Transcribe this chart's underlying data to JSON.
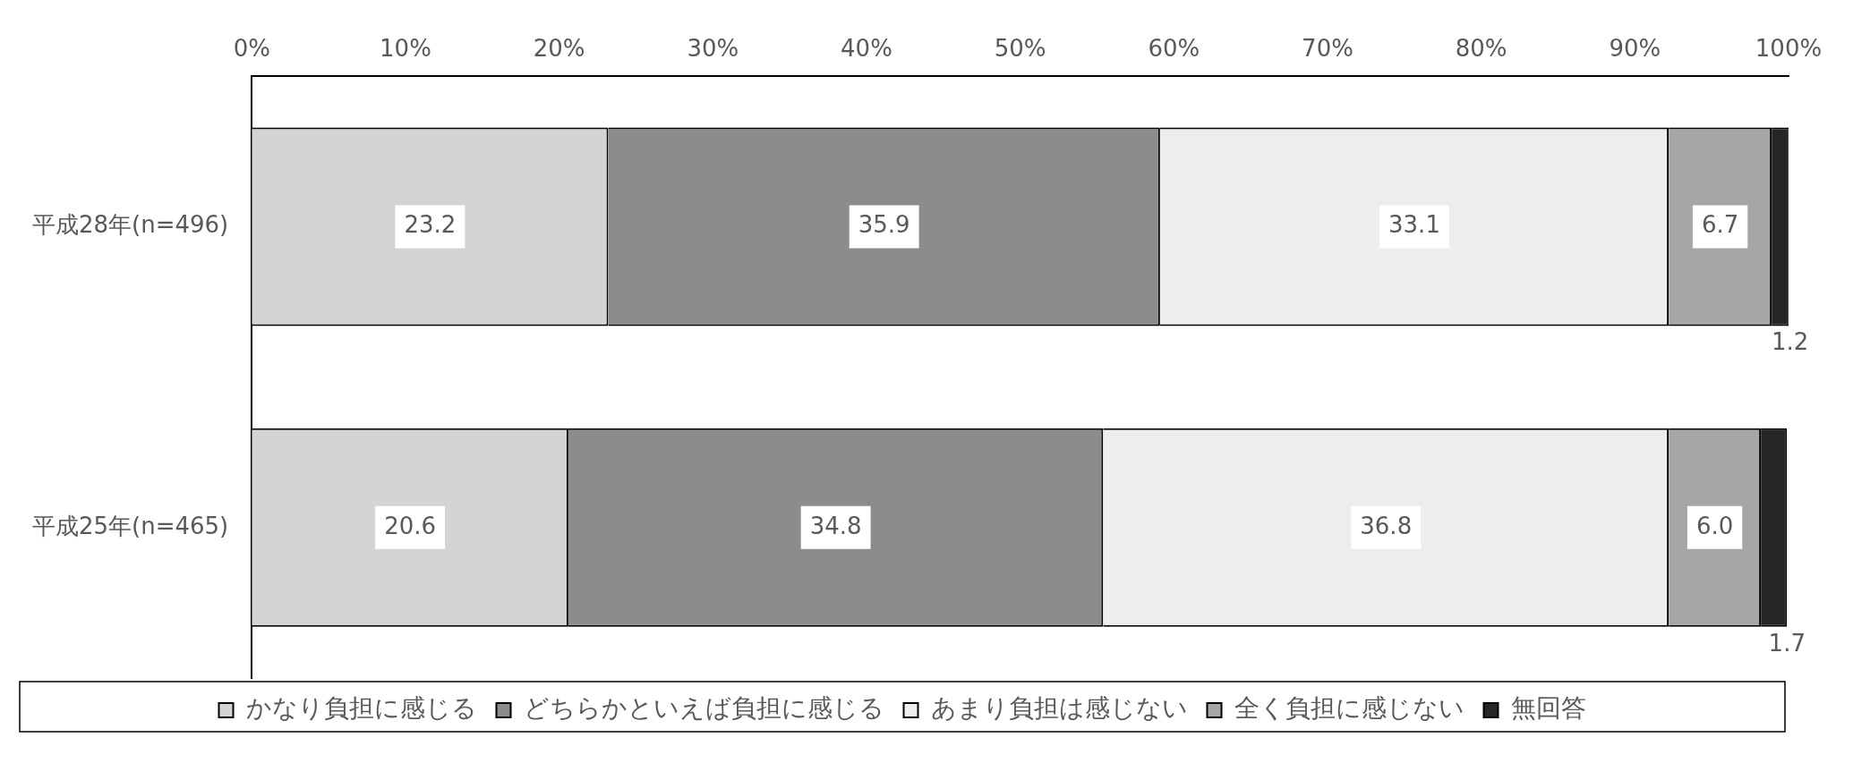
{
  "chart_data": {
    "type": "bar",
    "orientation": "horizontal",
    "stacked": true,
    "categories": [
      "平成28年(n=496)",
      "平成25年(n=465)"
    ],
    "xlim": [
      0,
      100
    ],
    "xticks": [
      {
        "value": 0,
        "label": "0%"
      },
      {
        "value": 10,
        "label": "10%"
      },
      {
        "value": 20,
        "label": "20%"
      },
      {
        "value": 30,
        "label": "30%"
      },
      {
        "value": 40,
        "label": "40%"
      },
      {
        "value": 50,
        "label": "50%"
      },
      {
        "value": 60,
        "label": "60%"
      },
      {
        "value": 70,
        "label": "70%"
      },
      {
        "value": 80,
        "label": "80%"
      },
      {
        "value": 90,
        "label": "90%"
      },
      {
        "value": 100,
        "label": "100%"
      }
    ],
    "grid": false,
    "legend": "bottom",
    "series": [
      {
        "name": "かなり負担に感じる",
        "color": "#d4d4d4",
        "values": [
          23.2,
          20.6
        ],
        "value_labels": [
          "23.2",
          "20.6"
        ]
      },
      {
        "name": "どちらかといえば負担に感じる",
        "color": "#8c8c8c",
        "values": [
          35.9,
          34.8
        ],
        "value_labels": [
          "35.9",
          "34.8"
        ]
      },
      {
        "name": "あまり負担は感じない",
        "color": "#ededed",
        "values": [
          33.1,
          36.8
        ],
        "value_labels": [
          "33.1",
          "36.8"
        ]
      },
      {
        "name": "全く負担に感じない",
        "color": "#a6a6a6",
        "values": [
          6.7,
          6.0
        ],
        "value_labels": [
          "6.7",
          "6.0"
        ]
      },
      {
        "name": "無回答",
        "color": "#262626",
        "values": [
          1.2,
          1.7
        ],
        "value_labels": [
          "1.2",
          "1.7"
        ]
      }
    ]
  }
}
